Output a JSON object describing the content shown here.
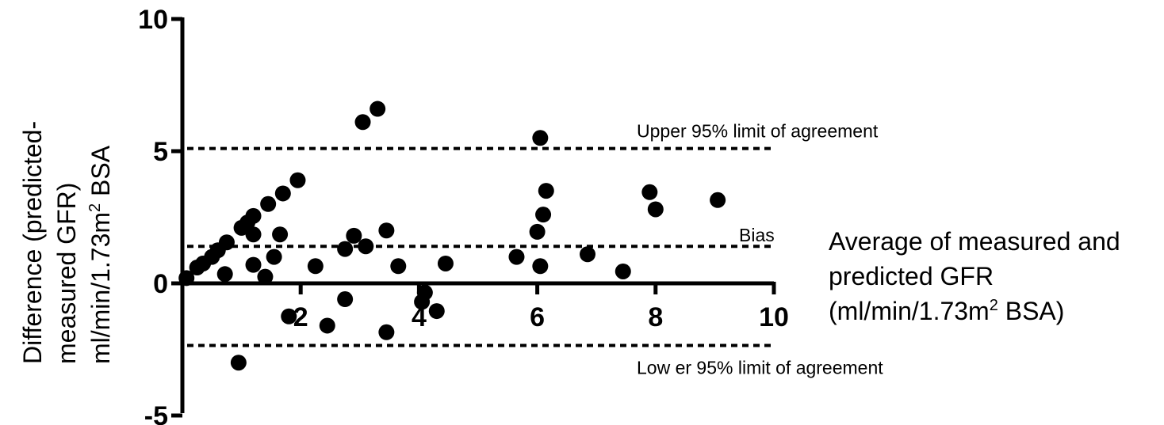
{
  "chart_data": {
    "type": "scatter",
    "title": "",
    "xlabel": "Average of measured and predicted GFR (ml/min/1.73m2 BSA)",
    "xlabel_lines": [
      "Average of measured and",
      "predicted  GFR",
      "(ml/min/1.73m",
      "2",
      " BSA)"
    ],
    "ylabel": "Difference (predicted- measured GFR) ml/min/1.73m2 BSA",
    "ylabel_lines": [
      "Difference (predicted-",
      "measured  GFR)",
      "ml/min/1.73m",
      "2",
      " BSA"
    ],
    "xlim": [
      0,
      10
    ],
    "ylim": [
      -5,
      10
    ],
    "xticks": [
      2,
      4,
      6,
      8,
      10
    ],
    "xtick_labels": [
      "2",
      "4",
      "6",
      "8",
      "10"
    ],
    "yticks": [
      -5,
      0,
      5,
      10
    ],
    "ytick_labels": [
      "-5",
      "0",
      "5",
      "10"
    ],
    "grid": false,
    "legend": "none",
    "reference_lines": [
      {
        "name": "upper",
        "y": 5.1,
        "label": "Upper 95% limit of agreement"
      },
      {
        "name": "bias",
        "y": 1.4,
        "label": "Bias"
      },
      {
        "name": "lower",
        "y": -2.35,
        "label": "Low er 95% limit of agreement"
      }
    ],
    "points": [
      {
        "x": 0.07,
        "y": 0.2
      },
      {
        "x": 0.25,
        "y": 0.6
      },
      {
        "x": 0.35,
        "y": 0.75
      },
      {
        "x": 0.5,
        "y": 1.0
      },
      {
        "x": 0.6,
        "y": 1.25
      },
      {
        "x": 0.75,
        "y": 1.55
      },
      {
        "x": 0.72,
        "y": 0.35
      },
      {
        "x": 1.0,
        "y": 2.1
      },
      {
        "x": 1.1,
        "y": 2.3
      },
      {
        "x": 1.2,
        "y": 2.55
      },
      {
        "x": 1.2,
        "y": 1.85
      },
      {
        "x": 1.2,
        "y": 0.7
      },
      {
        "x": 1.45,
        "y": 3.0
      },
      {
        "x": 1.4,
        "y": 0.25
      },
      {
        "x": 1.55,
        "y": 1.0
      },
      {
        "x": 1.65,
        "y": 1.85
      },
      {
        "x": 1.7,
        "y": 3.4
      },
      {
        "x": 1.95,
        "y": 3.9
      },
      {
        "x": 1.8,
        "y": -1.25
      },
      {
        "x": 0.95,
        "y": -3.0
      },
      {
        "x": 2.25,
        "y": 0.65
      },
      {
        "x": 2.45,
        "y": -1.6
      },
      {
        "x": 2.75,
        "y": 1.3
      },
      {
        "x": 2.75,
        "y": -0.6
      },
      {
        "x": 2.9,
        "y": 1.8
      },
      {
        "x": 3.05,
        "y": 6.1
      },
      {
        "x": 3.1,
        "y": 1.4
      },
      {
        "x": 3.3,
        "y": 6.6
      },
      {
        "x": 3.45,
        "y": 2.0
      },
      {
        "x": 3.45,
        "y": -1.85
      },
      {
        "x": 3.65,
        "y": 0.65
      },
      {
        "x": 4.1,
        "y": -0.35
      },
      {
        "x": 4.05,
        "y": -0.7
      },
      {
        "x": 4.3,
        "y": -1.05
      },
      {
        "x": 4.45,
        "y": 0.75
      },
      {
        "x": 5.65,
        "y": 1.0
      },
      {
        "x": 6.0,
        "y": 1.95
      },
      {
        "x": 6.05,
        "y": 5.5
      },
      {
        "x": 6.1,
        "y": 2.6
      },
      {
        "x": 6.15,
        "y": 3.5
      },
      {
        "x": 6.05,
        "y": 0.65
      },
      {
        "x": 6.85,
        "y": 1.1
      },
      {
        "x": 7.45,
        "y": 0.45
      },
      {
        "x": 7.9,
        "y": 3.45
      },
      {
        "x": 8.0,
        "y": 2.8
      },
      {
        "x": 9.05,
        "y": 3.15
      }
    ]
  }
}
